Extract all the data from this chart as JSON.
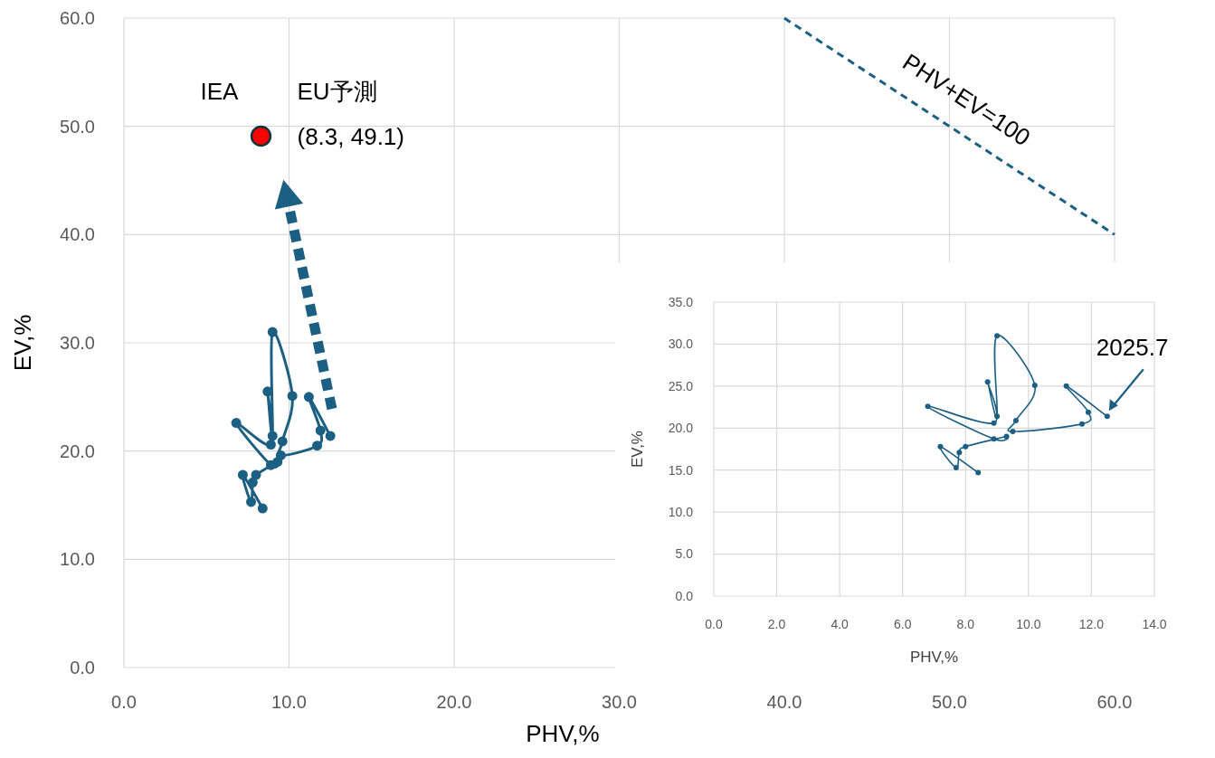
{
  "chart_data": [
    {
      "type": "line",
      "xlabel": "PHV,%",
      "ylabel": "EV,%",
      "xlim": [
        0,
        60
      ],
      "ylim": [
        0,
        60
      ],
      "xticks": [
        {
          "value": 0,
          "label": "0.0"
        },
        {
          "value": 10,
          "label": "10.0"
        },
        {
          "value": 20,
          "label": "20.0"
        },
        {
          "value": 30,
          "label": "30.0"
        },
        {
          "value": 40,
          "label": "40.0"
        },
        {
          "value": 50,
          "label": "50.0"
        },
        {
          "value": 60,
          "label": "60.0"
        }
      ],
      "yticks": [
        {
          "value": 0,
          "label": "0.0"
        },
        {
          "value": 10,
          "label": "10.0"
        },
        {
          "value": 20,
          "label": "20.0"
        },
        {
          "value": 30,
          "label": "30.0"
        },
        {
          "value": 40,
          "label": "40.0"
        },
        {
          "value": 50,
          "label": "50.0"
        },
        {
          "value": 60,
          "label": "60.0"
        }
      ],
      "grid": true,
      "marker": "circle",
      "series": [
        {
          "color": "#1b5f82",
          "x": [
            8.4,
            7.2,
            7.7,
            7.8,
            8.0,
            9.3,
            8.9,
            6.8,
            8.9,
            8.7,
            9.0,
            9.0,
            10.2,
            9.6,
            9.5,
            11.7,
            11.9,
            11.2,
            12.5
          ],
          "values": [
            14.7,
            17.8,
            15.3,
            17.1,
            17.8,
            19.0,
            18.7,
            22.6,
            20.6,
            25.5,
            21.4,
            31.0,
            25.1,
            20.9,
            19.6,
            20.5,
            21.9,
            25.0,
            21.4
          ]
        },
        {
          "type": "scatter",
          "color": "#ff0000",
          "x": [
            8.3
          ],
          "values": [
            49.1
          ]
        },
        {
          "type": "line",
          "name": "PHV+EV=100",
          "marker": "none",
          "line_style": "dashed",
          "color": "#1b5f82",
          "x": [
            40,
            60
          ],
          "values": [
            60,
            40
          ]
        }
      ],
      "annotations": [
        "IEA",
        "EU予測",
        "(8.3, 49.1)"
      ]
    },
    {
      "type": "line",
      "xlabel": "PHV,%",
      "ylabel": "EV,%",
      "xlim": [
        0,
        14
      ],
      "ylim": [
        0,
        35
      ],
      "xticks": [
        {
          "value": 0,
          "label": "0.0"
        },
        {
          "value": 2,
          "label": "2.0"
        },
        {
          "value": 4,
          "label": "4.0"
        },
        {
          "value": 6,
          "label": "6.0"
        },
        {
          "value": 8,
          "label": "8.0"
        },
        {
          "value": 10,
          "label": "10.0"
        },
        {
          "value": 12,
          "label": "12.0"
        },
        {
          "value": 14,
          "label": "14.0"
        }
      ],
      "yticks": [
        {
          "value": 0,
          "label": "0.0"
        },
        {
          "value": 5,
          "label": "5.0"
        },
        {
          "value": 10,
          "label": "10.0"
        },
        {
          "value": 15,
          "label": "15.0"
        },
        {
          "value": 20,
          "label": "20.0"
        },
        {
          "value": 25,
          "label": "25.0"
        },
        {
          "value": 30,
          "label": "30.0"
        },
        {
          "value": 35,
          "label": "35.0"
        }
      ],
      "grid": true,
      "marker": "circle",
      "series": [
        {
          "color": "#1b5f82",
          "x": [
            8.4,
            7.2,
            7.7,
            7.8,
            8.0,
            9.3,
            8.9,
            6.8,
            8.9,
            8.7,
            9.0,
            9.0,
            10.2,
            9.6,
            9.5,
            11.7,
            11.9,
            11.2,
            12.5
          ],
          "values": [
            14.7,
            17.8,
            15.3,
            17.1,
            17.8,
            19.0,
            18.7,
            22.6,
            20.6,
            25.5,
            21.4,
            31.0,
            25.1,
            20.9,
            19.6,
            20.5,
            21.9,
            25.0,
            21.4
          ]
        }
      ],
      "annotations": [
        "2025.7"
      ]
    }
  ]
}
